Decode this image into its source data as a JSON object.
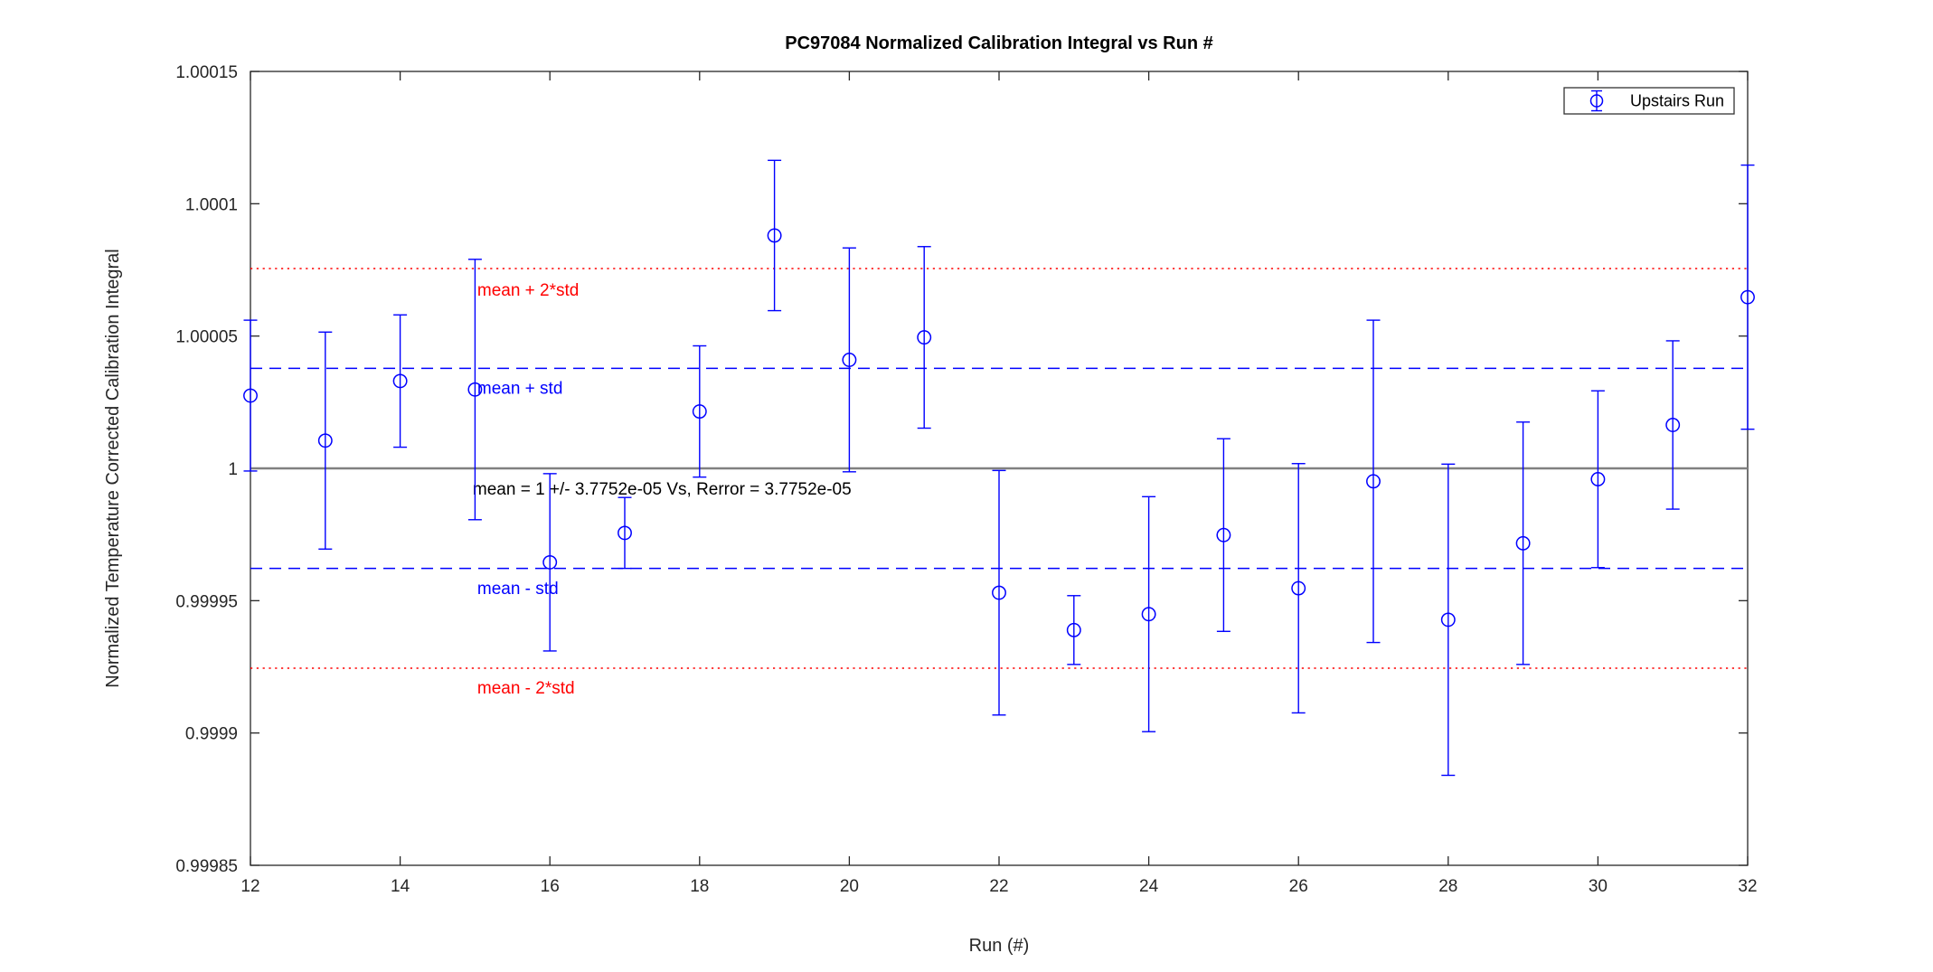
{
  "figure": {
    "background": "#ffffff",
    "frame_color": "#262626"
  },
  "chart_data": {
    "type": "scatter",
    "title": "PC97084 Normalized Calibration Integral vs Run #",
    "xlabel": "Run (#)",
    "ylabel": "Normalized Temperature Corrected Calibration Integral",
    "xlim": [
      12,
      32
    ],
    "ylim": [
      0.99985,
      1.00015
    ],
    "grid": false,
    "xtick_values": [
      12,
      14,
      16,
      18,
      20,
      22,
      24,
      26,
      28,
      30,
      32
    ],
    "xtick_labels": [
      "12",
      "14",
      "16",
      "18",
      "20",
      "22",
      "24",
      "26",
      "28",
      "30",
      "32"
    ],
    "ytick_values": [
      0.99985,
      0.9999,
      0.99995,
      1,
      1.00005,
      1.0001,
      1.00015
    ],
    "ytick_labels": [
      "0.99985",
      "0.9999",
      "0.99995",
      "1",
      "1.00005",
      "1.0001",
      "1.00015"
    ],
    "legend": {
      "position": "top-right",
      "entries": [
        {
          "label": "Upstairs Run",
          "marker": "errorbar-circle",
          "color": "#0000ff"
        }
      ]
    },
    "series": [
      {
        "name": "Upstairs Run",
        "color": "#0000ff",
        "marker": "circle",
        "x": [
          12,
          13,
          14,
          15,
          16,
          17,
          18,
          19,
          20,
          21,
          22,
          23,
          24,
          25,
          26,
          27,
          28,
          29,
          30,
          31,
          32
        ],
        "y": [
          1.0000275,
          1.0000105,
          1.000033,
          1.0000298,
          0.9999645,
          0.9999756,
          1.0000215,
          1.000088,
          1.000041,
          1.0000495,
          0.999953,
          0.9999389,
          0.9999449,
          0.9999748,
          0.9999547,
          0.9999951,
          0.9999428,
          0.9999717,
          0.9999959,
          1.0000164,
          1.0000647
        ],
        "yerr": [
          2.85e-05,
          4.1e-05,
          2.5e-05,
          4.92e-05,
          3.35e-05,
          1.34e-05,
          2.48e-05,
          2.84e-05,
          4.23e-05,
          3.43e-05,
          4.62e-05,
          1.3e-05,
          4.44e-05,
          3.64e-05,
          4.71e-05,
          6.09e-05,
          5.88e-05,
          4.58e-05,
          3.34e-05,
          3.18e-05,
          4.99e-05
        ]
      }
    ],
    "statistics": {
      "mean": 1,
      "std": 3.7752e-05,
      "mean_label_text": "mean = 1 +/- 3.7752e-05 Vs, Rerror = 3.7752e-05"
    },
    "reference_lines": [
      {
        "name": "mean-plus-2std",
        "value": 1.0000755,
        "color": "#ff0000",
        "style": "dotted",
        "width": 1.5
      },
      {
        "name": "mean-plus-std",
        "value": 1.0000378,
        "color": "#0000ff",
        "style": "dashed",
        "width": 1.5
      },
      {
        "name": "mean",
        "value": 1.0,
        "color": "#808080",
        "style": "solid",
        "width": 2.6
      },
      {
        "name": "mean-minus-std",
        "value": 0.9999622,
        "color": "#0000ff",
        "style": "dashed",
        "width": 1.5
      },
      {
        "name": "mean-minus-2std",
        "value": 0.9999245,
        "color": "#ff0000",
        "style": "dotted",
        "width": 1.5
      }
    ],
    "annotations": [
      {
        "text": "mean + 2*std",
        "color": "#ff0000",
        "x": 15.03,
        "y": 1.0000677
      },
      {
        "text": "mean + std",
        "color": "#0000ff",
        "x": 15.03,
        "y": 1.0000306
      },
      {
        "text": "mean = 1 +/- 3.7752e-05 Vs, Rerror = 3.7752e-05",
        "color": "#000000",
        "x": 14.97,
        "y": 0.9999925
      },
      {
        "text": "mean - std",
        "color": "#0000ff",
        "x": 15.03,
        "y": 0.9999549
      },
      {
        "text": "mean - 2*std",
        "color": "#ff0000",
        "x": 15.03,
        "y": 0.9999173
      }
    ]
  }
}
